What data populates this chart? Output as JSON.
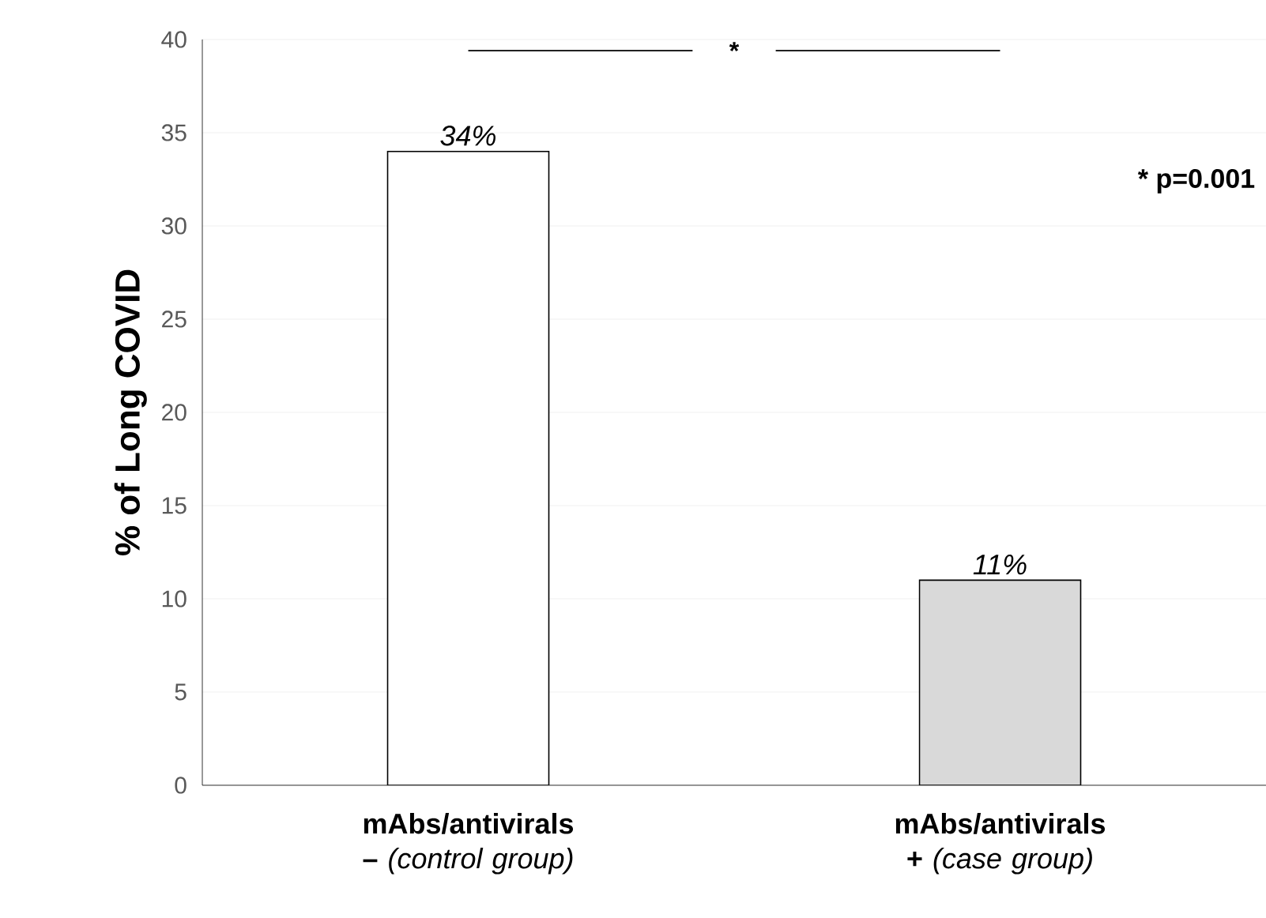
{
  "chart_data": {
    "type": "bar",
    "ylabel": "% of Long COVID",
    "categories": [
      "**mAbs/antivirals –** *(control group)*",
      "**mAbs/antivirals +** *(case group)*"
    ],
    "values": [
      34,
      11
    ],
    "colors": [
      "#ffffff",
      "#d9d9d9"
    ],
    "value_labels": [
      "34%",
      "11%"
    ],
    "ylim": [
      0,
      40
    ],
    "yticks": [
      0,
      5,
      10,
      15,
      20,
      25,
      30,
      35,
      40
    ],
    "grid": "y",
    "annotations": [
      "*",
      "* p=0.001"
    ]
  }
}
